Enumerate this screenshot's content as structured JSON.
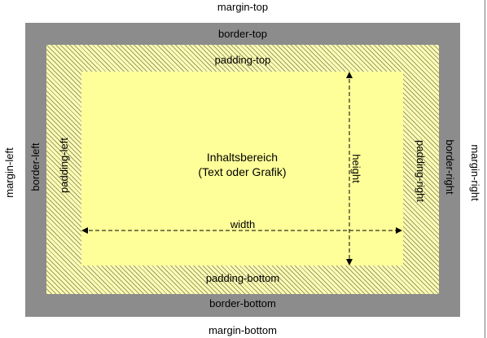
{
  "labels": {
    "margin_top": "margin-top",
    "margin_bottom": "margin-bottom",
    "margin_left": "margin-left",
    "margin_right": "margin-right",
    "border_top": "border-top",
    "border_bottom": "border-bottom",
    "border_left": "border-left",
    "border_right": "border-right",
    "padding_top": "padding-top",
    "padding_bottom": "padding-bottom",
    "padding_left": "padding-left",
    "padding_right": "padding-right",
    "content_line1": "Inhaltsbereich",
    "content_line2": "(Text oder Grafik)",
    "width": "width",
    "height": "height"
  },
  "colors": {
    "border": "#8c8c8c",
    "padding": "#ffffb3",
    "padding_hatch": "#9a9a70",
    "content": "#ffff99",
    "arrow": "#000000"
  }
}
